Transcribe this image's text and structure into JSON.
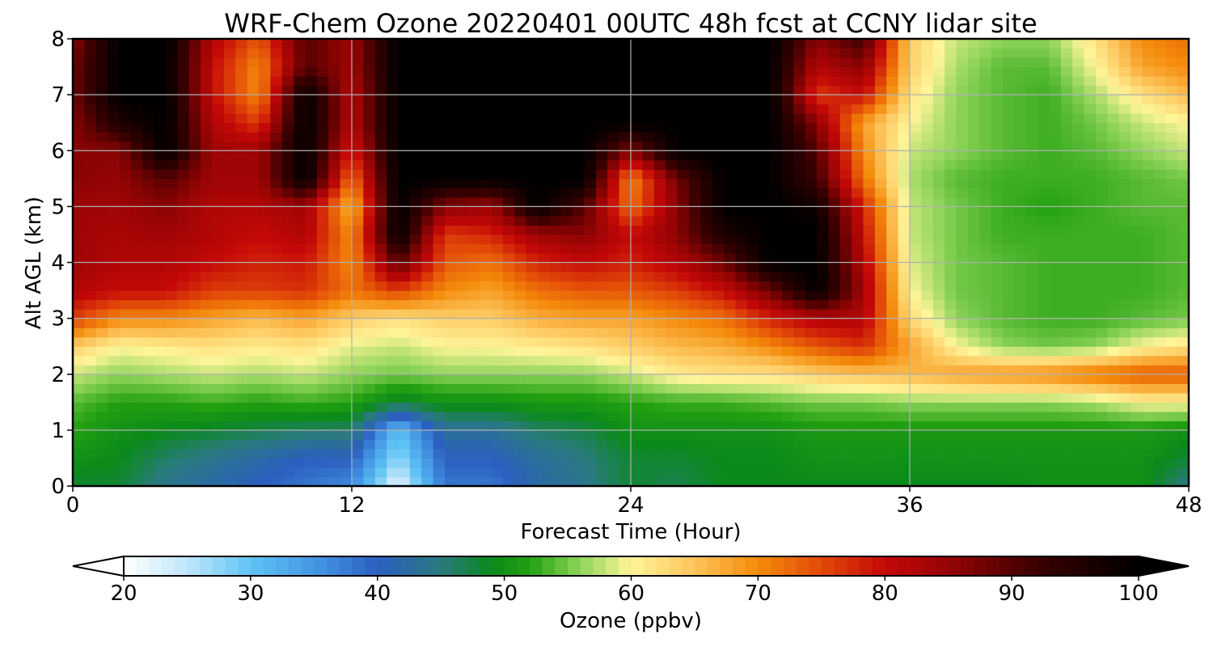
{
  "chart_data": {
    "type": "heatmap",
    "title": "WRF-Chem Ozone  20220401 00UTC 48h fcst at CCNY lidar site",
    "xlabel": "Forecast Time (Hour)",
    "ylabel": "Alt AGL (km)",
    "xlim": [
      0,
      48
    ],
    "ylim": [
      0,
      8
    ],
    "x_ticks": [
      0,
      12,
      24,
      36,
      48
    ],
    "y_ticks": [
      0,
      1,
      2,
      3,
      4,
      5,
      6,
      7,
      8
    ],
    "grid": true,
    "x": [
      0,
      2,
      4,
      6,
      8,
      10,
      12,
      14,
      16,
      18,
      20,
      22,
      24,
      26,
      28,
      30,
      32,
      34,
      36,
      38,
      40,
      42,
      44,
      46,
      48
    ],
    "y": [
      0,
      0.5,
      1,
      1.5,
      2,
      2.5,
      3,
      3.5,
      4,
      4.5,
      5,
      5.5,
      6,
      6.5,
      7,
      7.5,
      8
    ],
    "z": [
      [
        48,
        48,
        44,
        42,
        40,
        38,
        36,
        22,
        38,
        38,
        42,
        44,
        48,
        47,
        49,
        49,
        49,
        49,
        49,
        49,
        49,
        50,
        50,
        50,
        44
      ],
      [
        50,
        49,
        46,
        44,
        42,
        40,
        40,
        27,
        40,
        40,
        43,
        45,
        48,
        48,
        49,
        49,
        50,
        50,
        50,
        50,
        50,
        50,
        50,
        50,
        48
      ],
      [
        52,
        50,
        49,
        48,
        47,
        46,
        46,
        30,
        43,
        43,
        46,
        47,
        50,
        50,
        50,
        50,
        51,
        51,
        51,
        51,
        51,
        51,
        51,
        51,
        50
      ],
      [
        54,
        52,
        52,
        53,
        52,
        53,
        52,
        48,
        50,
        50,
        51,
        51,
        52,
        53,
        53,
        54,
        55,
        55,
        56,
        56,
        56,
        56,
        57,
        60,
        60
      ],
      [
        58,
        56,
        57,
        58,
        57,
        58,
        56,
        55,
        56,
        56,
        56,
        56,
        58,
        61,
        62,
        62,
        64,
        65,
        66,
        68,
        69,
        70,
        72,
        74,
        74
      ],
      [
        64,
        60,
        61,
        62,
        61,
        62,
        59,
        58,
        60,
        60,
        61,
        62,
        64,
        66,
        67,
        70,
        74,
        77,
        68,
        60,
        56,
        55,
        56,
        60,
        62
      ],
      [
        76,
        70,
        70,
        68,
        66,
        68,
        64,
        62,
        64,
        64,
        67,
        68,
        68,
        70,
        72,
        78,
        82,
        82,
        63,
        56,
        54,
        53,
        53,
        54,
        55
      ],
      [
        82,
        80,
        80,
        76,
        76,
        77,
        72,
        76,
        70,
        68,
        72,
        74,
        74,
        76,
        80,
        88,
        100,
        84,
        60,
        55,
        54,
        53,
        53,
        53,
        54
      ],
      [
        84,
        82,
        82,
        80,
        78,
        79,
        70,
        90,
        74,
        72,
        78,
        80,
        78,
        82,
        88,
        100,
        100,
        82,
        59,
        55,
        54,
        53,
        53,
        53,
        54
      ],
      [
        84,
        83,
        84,
        82,
        80,
        82,
        70,
        100,
        76,
        78,
        84,
        86,
        80,
        86,
        96,
        100,
        100,
        80,
        58,
        55,
        53,
        53,
        53,
        53,
        54
      ],
      [
        84,
        84,
        86,
        82,
        82,
        84,
        66,
        100,
        86,
        84,
        100,
        90,
        72,
        86,
        100,
        100,
        98,
        78,
        58,
        55,
        53,
        52,
        53,
        54,
        54
      ],
      [
        86,
        85,
        90,
        84,
        84,
        100,
        72,
        100,
        100,
        100,
        100,
        100,
        70,
        88,
        100,
        100,
        92,
        72,
        57,
        54,
        53,
        53,
        53,
        54,
        55
      ],
      [
        86,
        86,
        100,
        84,
        84,
        100,
        78,
        100,
        100,
        100,
        100,
        100,
        86,
        100,
        100,
        100,
        90,
        70,
        58,
        56,
        54,
        53,
        54,
        56,
        58
      ],
      [
        86,
        96,
        100,
        82,
        76,
        100,
        82,
        100,
        100,
        100,
        100,
        100,
        100,
        100,
        100,
        100,
        86,
        68,
        60,
        56,
        54,
        53,
        55,
        58,
        60
      ],
      [
        88,
        100,
        100,
        80,
        70,
        100,
        82,
        100,
        100,
        100,
        100,
        100,
        100,
        100,
        100,
        100,
        76,
        80,
        62,
        56,
        54,
        53,
        57,
        62,
        66
      ],
      [
        88,
        100,
        100,
        80,
        70,
        90,
        84,
        100,
        100,
        100,
        100,
        100,
        100,
        100,
        100,
        100,
        82,
        86,
        64,
        57,
        54,
        54,
        60,
        68,
        70
      ],
      [
        86,
        100,
        100,
        82,
        74,
        90,
        84,
        100,
        100,
        100,
        100,
        100,
        100,
        100,
        100,
        100,
        86,
        92,
        64,
        58,
        56,
        56,
        62,
        70,
        72
      ]
    ],
    "colorbar": {
      "label": "Ozone  (ppbv)",
      "min": 20,
      "max": 100,
      "ticks": [
        20,
        30,
        40,
        50,
        60,
        70,
        80,
        90,
        100
      ],
      "extend": "both",
      "stops": [
        [
          20,
          "#ffffff"
        ],
        [
          25,
          "#bfe6fa"
        ],
        [
          30,
          "#5ec3f5"
        ],
        [
          36,
          "#3f8de0"
        ],
        [
          40,
          "#2b5fc0"
        ],
        [
          45,
          "#2a7a80"
        ],
        [
          49,
          "#0a8a1a"
        ],
        [
          52,
          "#22a011"
        ],
        [
          56,
          "#8fd45a"
        ],
        [
          60,
          "#fff59a"
        ],
        [
          65,
          "#fdc45a"
        ],
        [
          70,
          "#f48a0a"
        ],
        [
          75,
          "#e24a08"
        ],
        [
          80,
          "#c40808"
        ],
        [
          85,
          "#960404"
        ],
        [
          92,
          "#3a0000"
        ],
        [
          100,
          "#000000"
        ]
      ]
    }
  }
}
